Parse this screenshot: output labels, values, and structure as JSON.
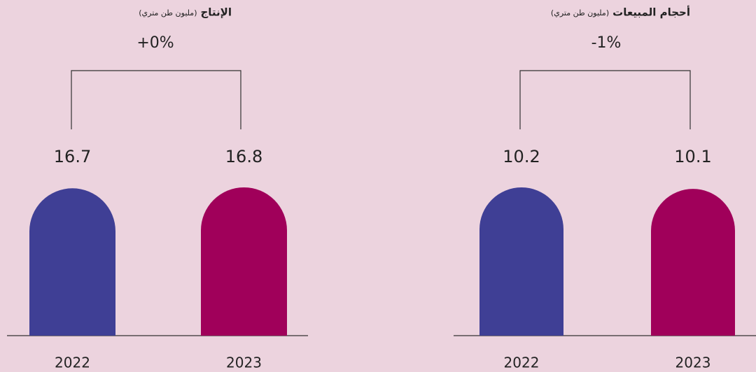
{
  "chart_data": [
    {
      "type": "bar",
      "title": "الإنتاج",
      "unit_label": "(مليون طن متري)",
      "change": "+0%",
      "categories": [
        "2022",
        "2023"
      ],
      "values": [
        16.7,
        16.8
      ],
      "colors": [
        "#3f3f95",
        "#a0005a"
      ]
    },
    {
      "type": "bar",
      "title": "أحجام المبيعات",
      "unit_label": "(مليون طن متري)",
      "change": "-1%",
      "categories": [
        "2022",
        "2023"
      ],
      "values": [
        10.2,
        10.1
      ],
      "colors": [
        "#3f3f95",
        "#a0005a"
      ]
    }
  ]
}
